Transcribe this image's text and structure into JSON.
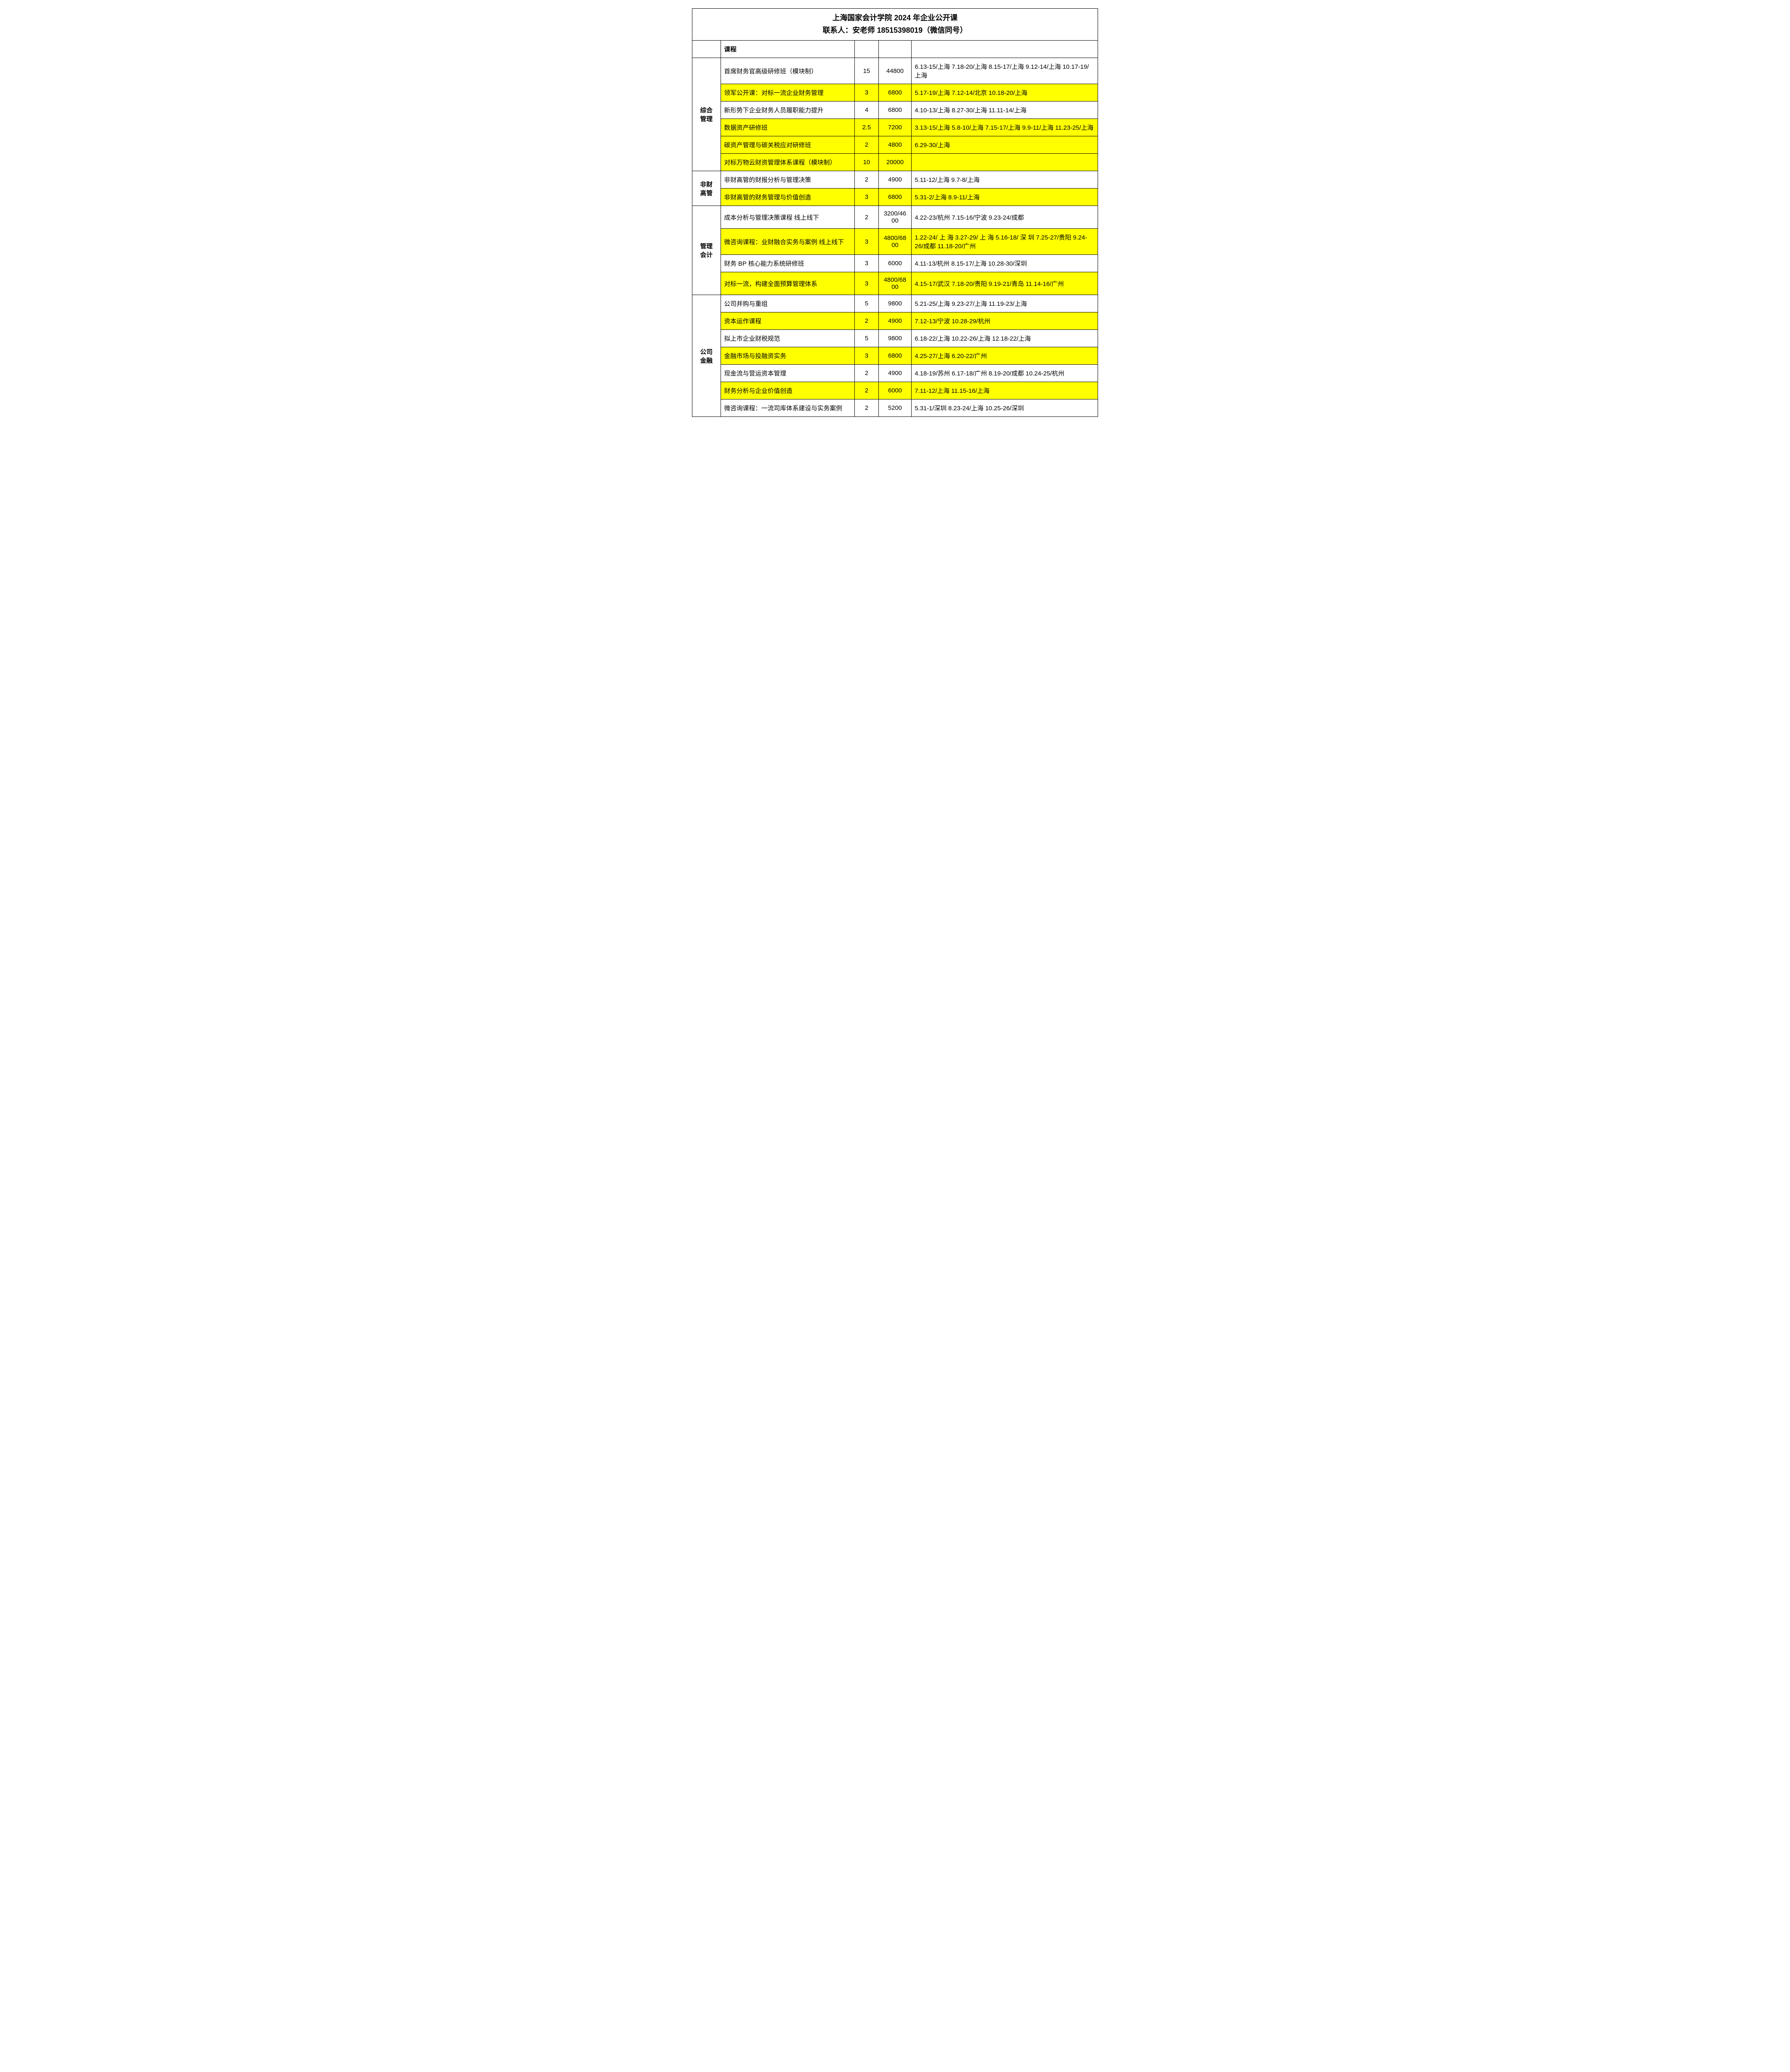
{
  "title": "上海国家会计学院 2024 年企业公开课",
  "contact": "联系人：安老师  18515398019（微信同号）",
  "headers": {
    "category": "",
    "course": "课程",
    "days": "",
    "price": "",
    "schedule": ""
  },
  "highlight_color": "#ffff00",
  "categories": [
    {
      "name": "综合管理",
      "rows": [
        {
          "course": "首席财务官高级研修班（模块制）",
          "days": "15",
          "price": "44800",
          "schedule": " 6.13-15/上海  7.18-20/上海  8.15-17/上海 9.12-14/上海  10.17-19/上海",
          "hl": false
        },
        {
          "course": "领军公开课：对标一流企业财务管理",
          "days": "3",
          "price": "6800",
          "schedule": "5.17-19/上海  7.12-14/北京  10.18-20/上海",
          "hl": true
        },
        {
          "course": "新形势下企业财务人员履职能力提升",
          "days": "4",
          "price": "6800",
          "schedule": "4.10-13/上海  8.27-30/上海  11.11-14/上海",
          "hl": false
        },
        {
          "course": "数据资产研修班",
          "days": "2.5",
          "price": "7200",
          "schedule": " 3.13-15/上海  5.8-10/上海  7.15-17/上海  9.9-11/上海 11.23-25/上海",
          "hl": true
        },
        {
          "course": "碳资产管理与碳关税应对研修班",
          "days": "2",
          "price": "4800",
          "schedule": "6.29-30/上海",
          "hl": true
        },
        {
          "course": "对标万物云财资管理体系课程（模块制）",
          "days": "10",
          "price": "20000",
          "schedule": "",
          "hl": true
        }
      ]
    },
    {
      "name": "非财高管",
      "rows": [
        {
          "course": "非财高管的财报分析与管理决策",
          "days": "2",
          "price": "4900",
          "schedule": "5.11-12/上海  9.7-8/上海",
          "hl": false
        },
        {
          "course": "非财高管的财务管理与价值创造",
          "days": "3",
          "price": "6800",
          "schedule": "5.31-2/上海  8.9-11/上海",
          "hl": true
        }
      ]
    },
    {
      "name": "管理会计",
      "rows": [
        {
          "course": "成本分析与管理决策课程  线上线下",
          "days": "2",
          "price": "3200/4600",
          "schedule": " 4.22-23/杭州  7.15-16/宁波 9.23-24/成都",
          "hl": false
        },
        {
          "course": "微咨询课程：业财融合实务与案例 线上线下",
          "days": "3",
          "price": "4800/6800",
          "schedule": " 1.22-24/ 上 海    3.27-29/ 上 海    5.16-18/ 深 圳 7.25-27/贵阳 9.24-26/成都  11.18-20/广州",
          "hl": true
        },
        {
          "course": "财务 BP 核心能力系统研修班",
          "days": "3",
          "price": "6000",
          "schedule": "4.11-13/杭州  8.15-17/上海 10.28-30/深圳",
          "hl": false
        },
        {
          "course": "对标一流，构建全面预算管理体系",
          "days": "3",
          "price": "4800/6800",
          "schedule": "4.15-17/武汉  7.18-20/贵阳 9.19-21/青岛  11.14-16/广州",
          "hl": true
        }
      ]
    },
    {
      "name": "公司金融",
      "rows": [
        {
          "course": "公司并购与重组",
          "days": "5",
          "price": "9800",
          "schedule": " 5.21-25/上海  9.23-27/上海 11.19-23/上海",
          "hl": false
        },
        {
          "course": "资本运作课程",
          "days": "2",
          "price": "4900",
          "schedule": "7.12-13/宁波  10.28-29/杭州",
          "hl": true
        },
        {
          "course": "拟上市企业财税规范",
          "days": "5",
          "price": "9800",
          "schedule": "6.18-22/上海  10.22-26/上海 12.18-22/上海",
          "hl": false
        },
        {
          "course": "金融市场与投融资实务",
          "days": "3",
          "price": "6800",
          "schedule": " 4.25-27/上海  6.20-22/广州",
          "hl": true
        },
        {
          "course": "现金流与营运资本管理",
          "days": "2",
          "price": "4900",
          "schedule": "  4.18-19/苏州  6.17-18/广州 8.19-20/成都  10.24-25/杭州",
          "hl": false
        },
        {
          "course": "财务分析与企业价值创造",
          "days": "2",
          "price": "6000",
          "schedule": "7.11-12/上海  11.15-16/上海",
          "hl": true
        },
        {
          "course": "微咨询课程：一流司库体系建设与实务案例",
          "days": "2",
          "price": "5200",
          "schedule": " 5.31-1/深圳  8.23-24/上海  10.25-26/深圳",
          "hl": false
        }
      ]
    }
  ]
}
